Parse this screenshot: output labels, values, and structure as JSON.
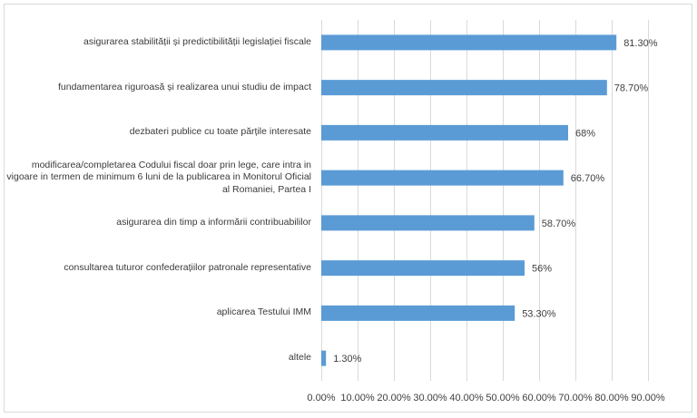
{
  "chart_data": {
    "type": "bar",
    "orientation": "horizontal",
    "categories": [
      "asigurarea stabilității și predictibilității legislației fiscale",
      "fundamentarea riguroasă și realizarea unui studiu de impact",
      "dezbateri publice cu toate părțile interesate",
      "modificarea/completarea Codului fiscal doar prin lege, care intra in vigoare in termen de minimum 6 luni de la publicarea in Monitorul Oficial al Romaniei, Partea I",
      "asigurarea din timp a informării contribuabililor",
      "consultarea tuturor confederațiilor patronale representative",
      "aplicarea Testului IMM",
      "altele"
    ],
    "values": [
      81.3,
      78.7,
      68,
      66.7,
      58.7,
      56,
      53.3,
      1.3
    ],
    "data_labels": [
      "81.30%",
      "78.70%",
      "68%",
      "66.70%",
      "58.70%",
      "56%",
      "53.30%",
      "1.30%"
    ],
    "xlim": [
      0,
      90
    ],
    "x_ticks": [
      0,
      10,
      20,
      30,
      40,
      50,
      60,
      70,
      80,
      90
    ],
    "x_tick_labels": [
      "0.00%",
      "10.00%",
      "20.00%",
      "30.00%",
      "40.00%",
      "50.00%",
      "60.00%",
      "70.00%",
      "80.00%",
      "90.00%"
    ],
    "grid": "vertical",
    "bar_color": "#5b9bd5",
    "grid_color": "#d9d9d9",
    "title": "",
    "xlabel": "",
    "ylabel": ""
  }
}
